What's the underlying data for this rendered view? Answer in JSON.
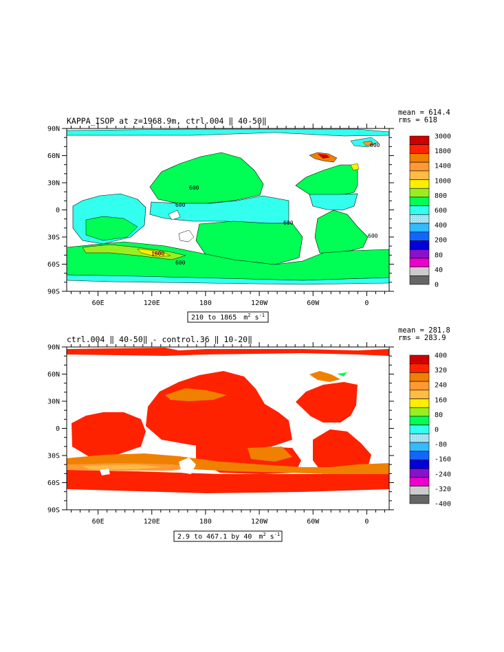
{
  "panel1": {
    "title": "KAPPA_ISOP at z=1968.9m, ctrl.004 ‖ 40-50‖",
    "mean_text": "mean = 614.4",
    "rms_text": "rms = 618",
    "range_text": "210 to 1865",
    "units_base": "m",
    "units_exp1": "2",
    "units_mid": " s",
    "units_exp2": "-1",
    "contour_labels": [
      "600",
      "600",
      "600",
      "600",
      "600",
      "1600",
      "600"
    ],
    "colorbar_labels": [
      "3000",
      "1800",
      "1400",
      "1000",
      "800",
      "600",
      "400",
      "200",
      "80",
      "40",
      "0"
    ],
    "colorbar_colors": [
      "#cc0000",
      "#ff2200",
      "#f08000",
      "#ff9933",
      "#ffbb44",
      "#ffee00",
      "#99ee22",
      "#00ff55",
      "#33ffee",
      "#99ddee",
      "#33bbff",
      "#1166ff",
      "#0000dd",
      "#8811cc",
      "#ee00cc",
      "#cccccc",
      "#666666"
    ]
  },
  "panel2": {
    "title": "ctrl.004 ‖ 40-50‖ - control.36 ‖ 10-20‖",
    "mean_text": "mean = 281.8",
    "rms_text": "rms = 283.9",
    "range_text": "2.9 to 467.1 by 40",
    "units_base": "m",
    "units_exp1": "2",
    "units_mid": " s",
    "units_exp2": "-1",
    "colorbar_labels": [
      "400",
      "320",
      "240",
      "160",
      "80",
      "0",
      "-80",
      "-160",
      "-240",
      "-320",
      "-400"
    ],
    "colorbar_colors": [
      "#cc0000",
      "#ff2200",
      "#f08000",
      "#ff9933",
      "#ffbb44",
      "#ffee00",
      "#99ee22",
      "#00ff55",
      "#33ffee",
      "#99ddee",
      "#33bbff",
      "#1166ff",
      "#0000dd",
      "#8811cc",
      "#ee00cc",
      "#cccccc",
      "#666666"
    ]
  },
  "axes": {
    "y_ticks": [
      "90N",
      "60N",
      "30N",
      "0",
      "30S",
      "60S",
      "90S"
    ],
    "x_ticks": [
      "60E",
      "120E",
      "180",
      "120W",
      "60W",
      "0"
    ]
  }
}
